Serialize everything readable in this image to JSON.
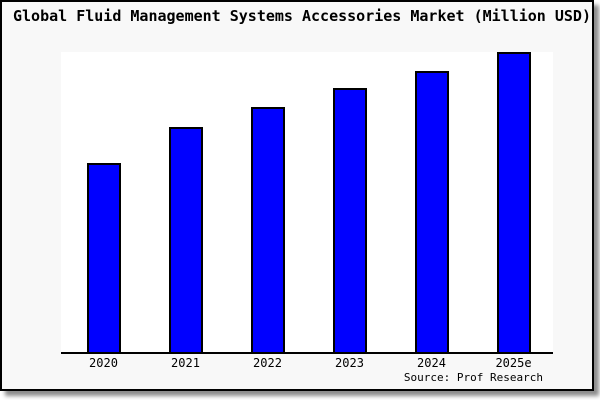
{
  "title": "Global Fluid Management Systems Accessories Market (Million USD)",
  "source_note": "Source: Prof Research",
  "colors": {
    "bar_fill": "#0000ff",
    "bar_border": "#000000",
    "frame_background": "#f8f8f8",
    "plot_background": "#ffffff",
    "axis": "#000000"
  },
  "chart_data": {
    "type": "bar",
    "title": "Global Fluid Management Systems Accessories Market (Million USD)",
    "categories": [
      "2020",
      "2021",
      "2022",
      "2023",
      "2024",
      "2025e"
    ],
    "values": [
      189,
      225,
      245,
      264,
      281,
      300
    ],
    "value_unit": "relative units (no y-axis scale shown in chart)",
    "xlabel": "",
    "ylabel": "",
    "ylim": [
      0,
      300
    ],
    "grid": false,
    "legend": false,
    "annotations": [
      "Source: Prof Research"
    ]
  }
}
